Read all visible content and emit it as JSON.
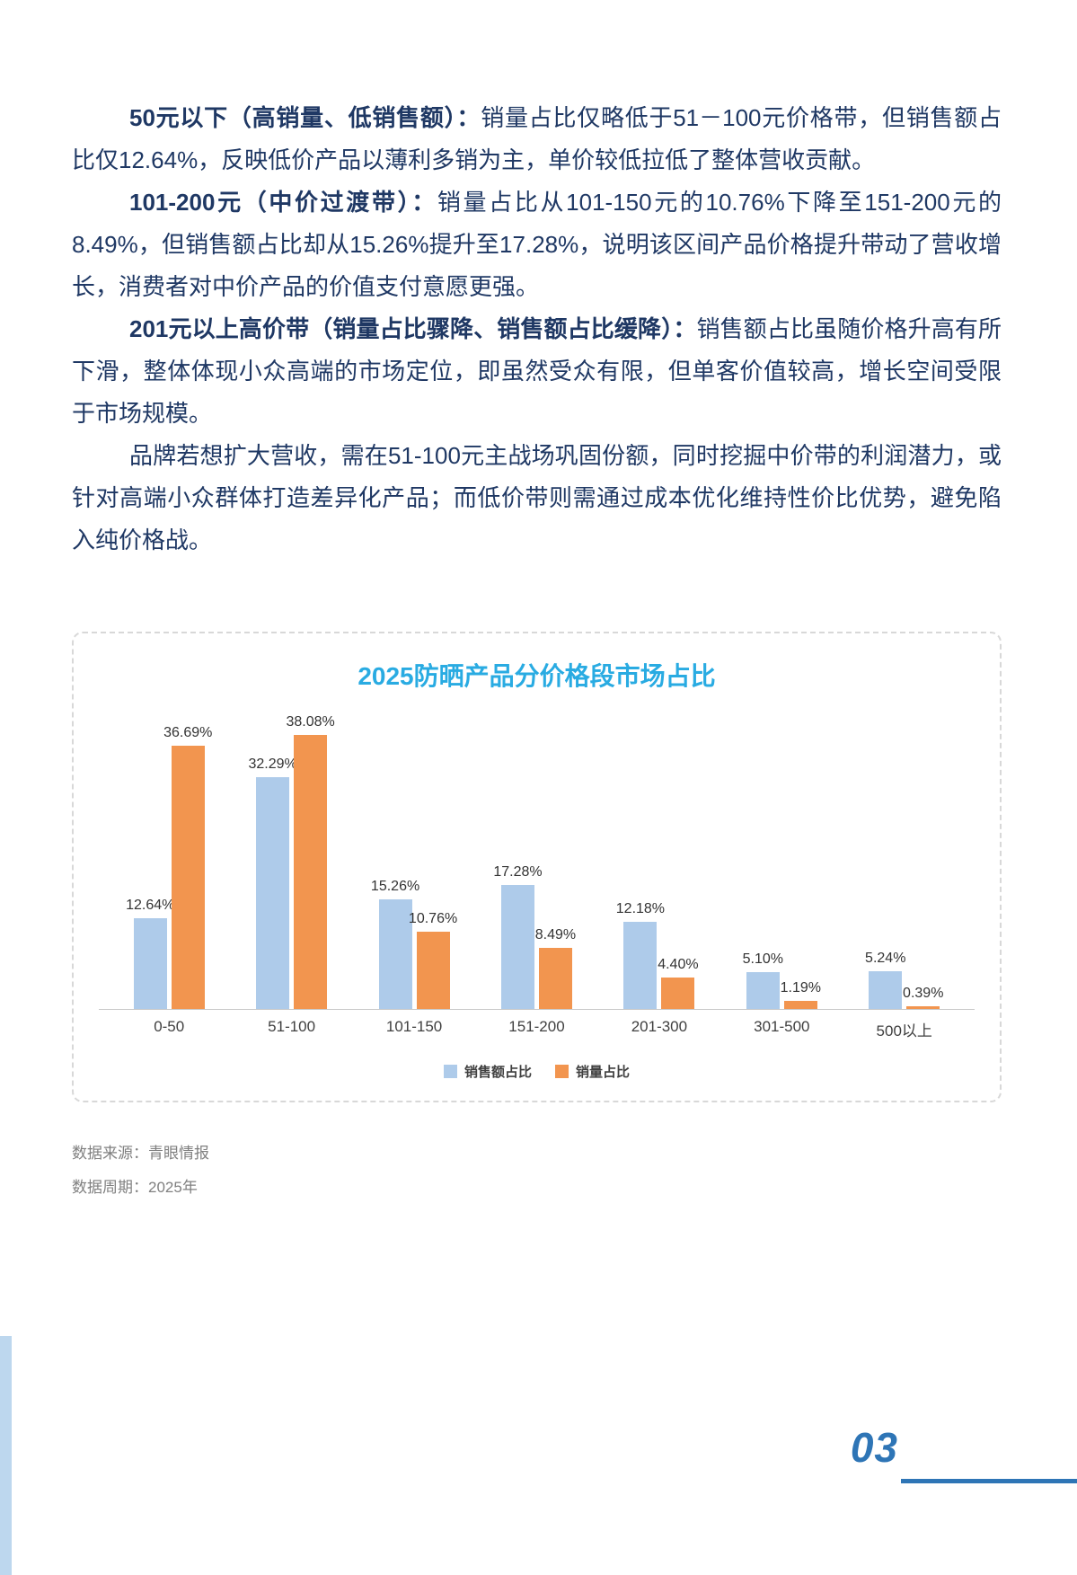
{
  "page": {
    "number": "03"
  },
  "paragraphs": [
    {
      "lead": "50元以下（高销量、低销售额）：",
      "body": "销量占比仅略低于51－100元价格带，但销售额占比仅12.64%，反映低价产品以薄利多销为主，单价较低拉低了整体营收贡献。"
    },
    {
      "lead": "101-200元（中价过渡带）：",
      "body": "销量占比从101-150元的10.76%下降至151-200元的8.49%，但销售额占比却从15.26%提升至17.28%，说明该区间产品价格提升带动了营收增长，消费者对中价产品的价值支付意愿更强。"
    },
    {
      "lead": "201元以上高价带（销量占比骤降、销售额占比缓降）：",
      "body": "销售额占比虽随价格升高有所下滑，整体体现小众高端的市场定位，即虽然受众有限，但单客价值较高，增长空间受限于市场规模。"
    },
    {
      "lead": "",
      "body": "品牌若想扩大营收，需在51-100元主战场巩固份额，同时挖掘中价带的利润潜力，或针对高端小众群体打造差异化产品；而低价带则需通过成本优化维持性价比优势，避免陷入纯价格战。"
    }
  ],
  "chart_data": {
    "type": "bar",
    "title": "2025防晒产品分价格段市场占比",
    "categories": [
      "0-50",
      "51-100",
      "101-150",
      "151-200",
      "201-300",
      "301-500",
      "500以上"
    ],
    "series": [
      {
        "name": "销售额占比",
        "color": "#AECBEA",
        "values": [
          12.64,
          32.29,
          15.26,
          17.28,
          12.18,
          5.1,
          5.24
        ]
      },
      {
        "name": "销量占比",
        "color": "#F2954F",
        "values": [
          36.69,
          38.08,
          10.76,
          8.49,
          4.4,
          1.19,
          0.39
        ]
      }
    ],
    "ylim": [
      0,
      40
    ],
    "grid": false,
    "legend_position": "bottom",
    "value_labels": "percent, 2 decimals"
  },
  "footer": {
    "source": "数据来源：青眼情报",
    "period": "数据周期：2025年"
  },
  "colors": {
    "title": "#29ABE2",
    "body_text": "#1F3864",
    "series_revenue": "#AECBEA",
    "series_volume": "#F2954F",
    "page_number": "#2E75B6",
    "accent_stripe": "#BDD7EE"
  }
}
